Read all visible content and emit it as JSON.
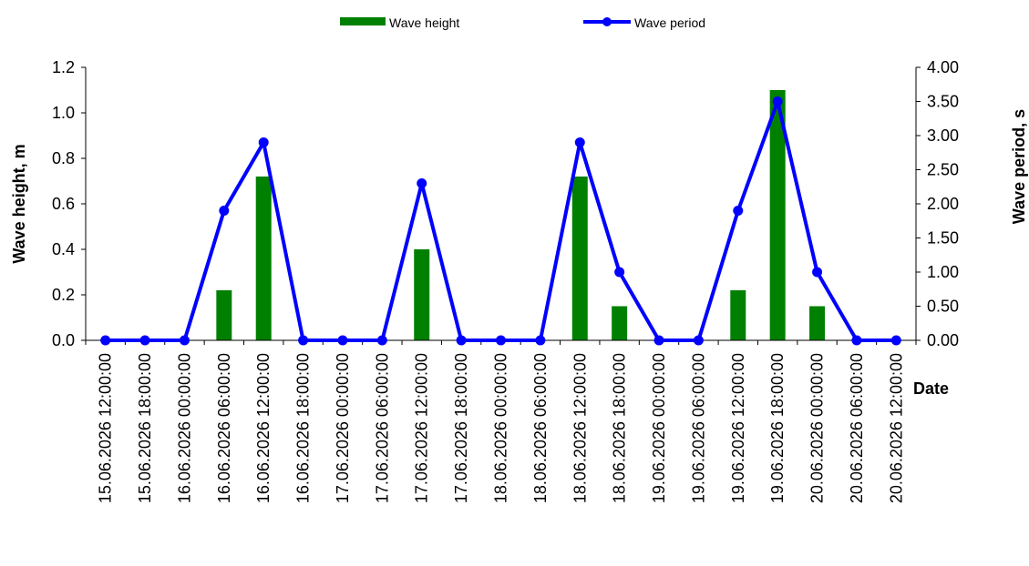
{
  "chart_data": {
    "type": "bar+line",
    "categories": [
      "15.06.2026 12:00:00",
      "15.06.2026 18:00:00",
      "16.06.2026 00:00:00",
      "16.06.2026 06:00:00",
      "16.06.2026 12:00:00",
      "16.06.2026 18:00:00",
      "17.06.2026 00:00:00",
      "17.06.2026 06:00:00",
      "17.06.2026 12:00:00",
      "17.06.2026 18:00:00",
      "18.06.2026 00:00:00",
      "18.06.2026 06:00:00",
      "18.06.2026 12:00:00",
      "18.06.2026 18:00:00",
      "19.06.2026 00:00:00",
      "19.06.2026 06:00:00",
      "19.06.2026 12:00:00",
      "19.06.2026 18:00:00",
      "20.06.2026 00:00:00",
      "20.06.2026 06:00:00",
      "20.06.2026 12:00:00"
    ],
    "series": [
      {
        "name": "Wave height",
        "type": "bar",
        "axis": "left",
        "color": "#008000",
        "values": [
          0,
          0,
          0,
          0.22,
          0.72,
          0,
          0,
          0,
          0.4,
          0,
          0,
          0,
          0.72,
          0.15,
          0,
          0,
          0.22,
          1.1,
          0.15,
          0,
          0
        ]
      },
      {
        "name": "Wave period",
        "type": "line",
        "axis": "right",
        "color": "#0000FF",
        "values": [
          0,
          0,
          0,
          1.9,
          2.9,
          0,
          0,
          0,
          2.3,
          0,
          0,
          0,
          2.9,
          1.0,
          0,
          0,
          1.9,
          3.5,
          1.0,
          0,
          0
        ]
      }
    ],
    "xlabel": "Date",
    "ylabel": "Wave height, m",
    "y2label": "Wave period, s",
    "ylim": [
      0,
      1.2
    ],
    "y2lim": [
      0,
      4.0
    ],
    "yticks": [
      "0.0",
      "0.2",
      "0.4",
      "0.6",
      "0.8",
      "1.0",
      "1.2"
    ],
    "y2ticks": [
      "0.00",
      "0.50",
      "1.00",
      "1.50",
      "2.00",
      "2.50",
      "3.00",
      "3.50",
      "4.00"
    ],
    "grid": false,
    "legend_position": "top-center"
  }
}
